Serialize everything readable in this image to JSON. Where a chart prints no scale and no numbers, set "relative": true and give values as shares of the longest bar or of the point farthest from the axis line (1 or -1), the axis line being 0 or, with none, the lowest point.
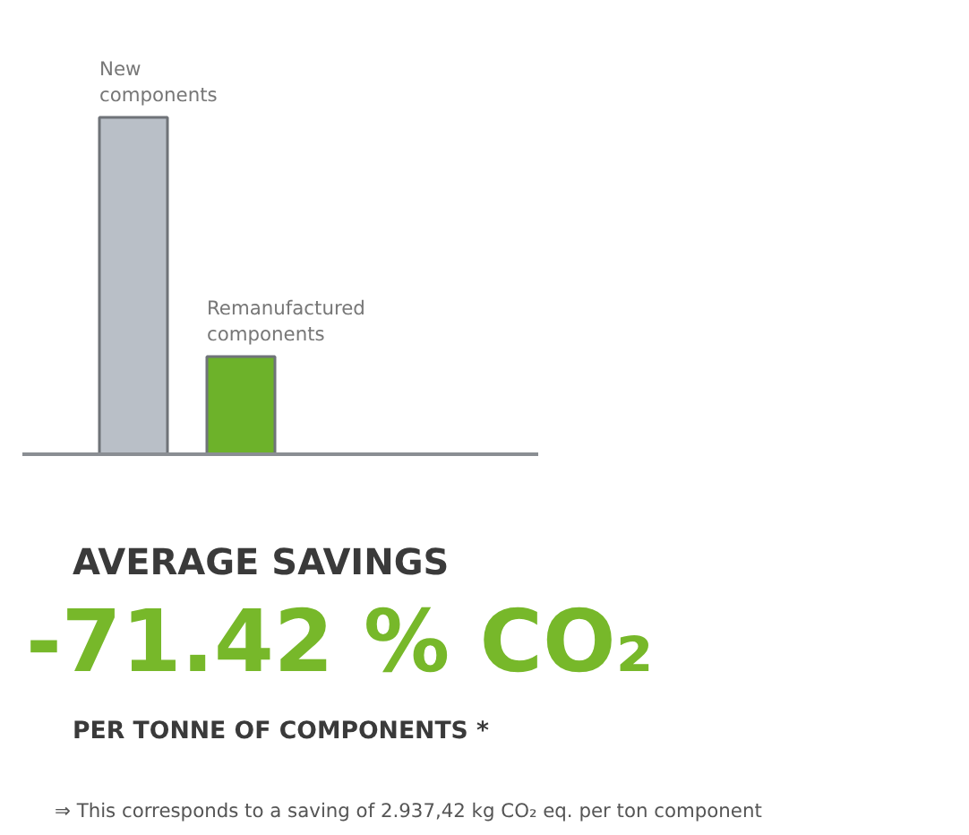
{
  "chart_data": {
    "type": "bar",
    "relative": true,
    "data_labels": false,
    "categories": [
      "New components",
      "Remanufactured components"
    ],
    "series": [
      {
        "colors": [
          "#b9bfc7",
          "#6db22a"
        ],
        "values": [
          1,
          0.29
        ]
      }
    ],
    "title": "AVERAGE SAVINGS",
    "subtitle": "-71.42 % CO₂",
    "annotations": [
      "PER TONNE OF COMPONENTS *",
      "⇒ This corresponds to a saving of 2.937,42 kg CO₂ eq. per ton component"
    ],
    "grid": false
  }
}
